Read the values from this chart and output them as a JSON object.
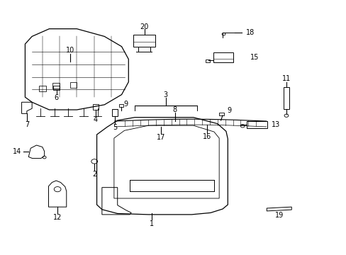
{
  "background_color": "#ffffff",
  "line_color": "#000000",
  "fig_width": 4.89,
  "fig_height": 3.6,
  "dpi": 100,
  "label_fontsize": 7
}
